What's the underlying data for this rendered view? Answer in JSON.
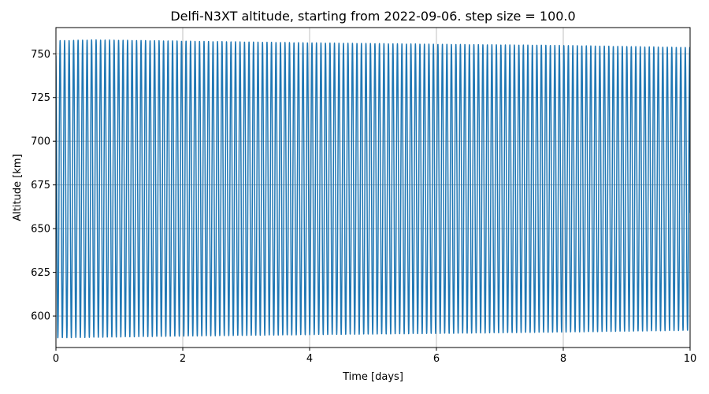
{
  "chart_data": {
    "type": "line",
    "title": "Delfi-N3XT altitude, starting from 2022-09-06. step size = 100.0",
    "xlabel": "Time [days]",
    "ylabel": "Altitude [km]",
    "xlim": [
      0,
      10
    ],
    "ylim": [
      582,
      765
    ],
    "xticks": [
      0,
      2,
      4,
      6,
      8,
      10
    ],
    "yticks": [
      600,
      625,
      650,
      675,
      700,
      725,
      750
    ],
    "grid": true,
    "legend": "none",
    "series": [
      {
        "color": "#1f77b4",
        "waveform": {
          "orbits_per_day": 14.1,
          "apogee_km": [
            [
              0,
              757.5
            ],
            [
              0.6,
              758.0
            ],
            [
              2,
              757.3
            ],
            [
              4,
              756.3
            ],
            [
              6,
              755.5
            ],
            [
              8,
              754.8
            ],
            [
              10,
              753.6
            ]
          ],
          "perigee_km": [
            [
              0,
              587.5
            ],
            [
              2,
              588.5
            ],
            [
              4,
              589.3
            ],
            [
              6,
              590.0
            ],
            [
              8,
              590.8
            ],
            [
              10,
              591.8
            ]
          ],
          "end_value_km": 659
        }
      }
    ]
  }
}
